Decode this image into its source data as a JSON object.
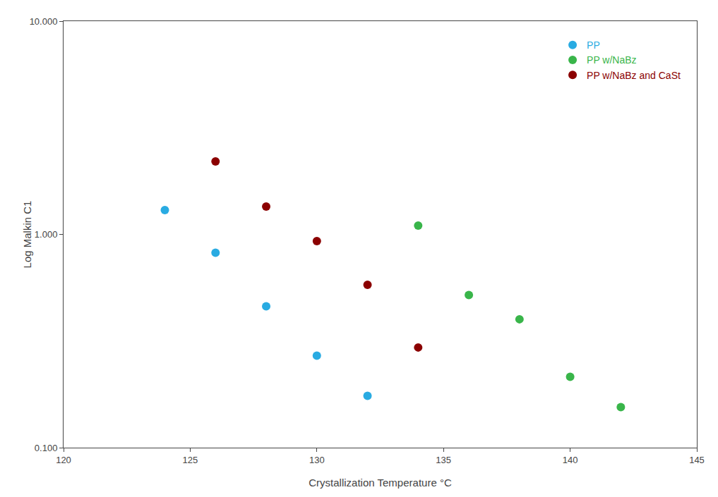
{
  "chart_data": {
    "type": "scatter",
    "xlabel": "Crystallization Temperature °C",
    "ylabel": "Log Malkin C1",
    "series": [
      {
        "name": "PP",
        "color": "#29ABE2",
        "x": [
          124,
          126,
          128,
          130,
          132
        ],
        "values": [
          1.3,
          0.82,
          0.46,
          0.27,
          0.175
        ]
      },
      {
        "name": "PP w/NaBz",
        "color": "#39B54A",
        "x": [
          134,
          136,
          138,
          140,
          142
        ],
        "values": [
          1.1,
          0.52,
          0.4,
          0.215,
          0.155
        ]
      },
      {
        "name": "PP w/NaBz and CaSt",
        "color": "#8B0000",
        "x": [
          126,
          128,
          130,
          132,
          134
        ],
        "values": [
          2.2,
          1.35,
          0.93,
          0.58,
          0.295
        ]
      }
    ],
    "xlim": [
      120,
      145
    ],
    "xticks": [
      120,
      125,
      130,
      135,
      140,
      145
    ],
    "ylim": [
      0.1,
      10.0
    ],
    "yticks": [
      {
        "value": 0.1,
        "label": "0.100"
      },
      {
        "value": 1.0,
        "label": "1.000"
      },
      {
        "value": 10.0,
        "label": "10.000"
      }
    ],
    "log": "y",
    "grid": false,
    "legend": "upper right",
    "marker": "circle"
  }
}
